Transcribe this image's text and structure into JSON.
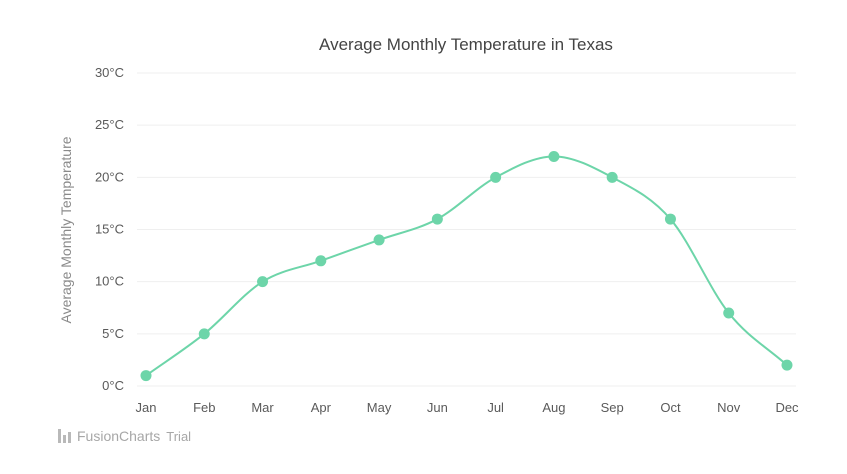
{
  "chart_data": {
    "type": "line",
    "title": "Average Monthly Temperature in Texas",
    "xlabel": "",
    "ylabel": "Average Monthly Temperature",
    "categories": [
      "Jan",
      "Feb",
      "Mar",
      "Apr",
      "May",
      "Jun",
      "Jul",
      "Aug",
      "Sep",
      "Oct",
      "Nov",
      "Dec"
    ],
    "series": [
      {
        "values": [
          1,
          5,
          10,
          12,
          14,
          16,
          20,
          22,
          20,
          16,
          7,
          2
        ]
      }
    ],
    "ylim": [
      0,
      30
    ],
    "yticks": [
      0,
      5,
      10,
      15,
      20,
      25,
      30
    ],
    "ytick_labels": [
      "0°C",
      "5°C",
      "10°C",
      "15°C",
      "20°C",
      "25°C",
      "30°C"
    ],
    "grid": true,
    "smooth": true,
    "colors": {
      "series": "#6dd5a9",
      "grid": "#efefef"
    }
  },
  "branding": {
    "name": "FusionCharts",
    "trial": "Trial"
  }
}
